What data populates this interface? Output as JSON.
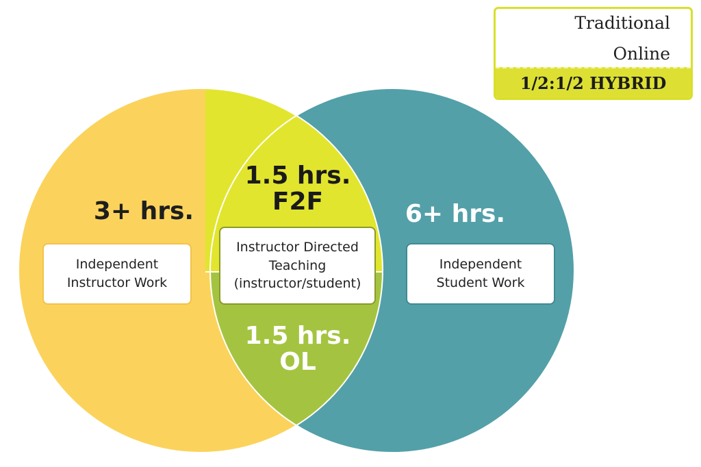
{
  "colors": {
    "traditional": "#FBD35C",
    "online": "#53A0A9",
    "f2f": "#E2E52E",
    "ol": "#A4C441",
    "legend_border": "#D9DF2A"
  },
  "legend": {
    "traditional": "Traditional",
    "online": "Online",
    "hybrid": "1/2:1/2 HYBRID"
  },
  "left": {
    "hours": "3+ hrs.",
    "line1": "Independent",
    "line2": "Instructor Work"
  },
  "right": {
    "hours": "6+ hrs.",
    "line1": "Independent",
    "line2": "Student Work"
  },
  "center": {
    "f2f_hours": "1.5 hrs.",
    "f2f_label": "F2F",
    "ol_hours": "1.5 hrs.",
    "ol_label": "OL",
    "line1": "Instructor Directed",
    "line2": "Teaching",
    "line3": "(instructor/student)"
  }
}
